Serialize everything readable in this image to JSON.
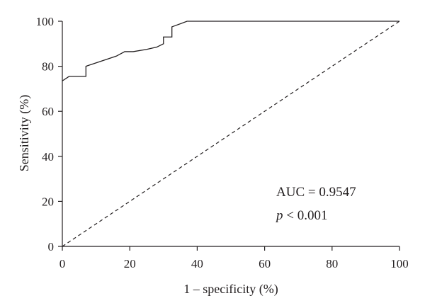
{
  "chart_data": {
    "type": "line",
    "title": "",
    "xlabel": "1 – specificity (%)",
    "ylabel": "Sensitivity (%)",
    "xlim": [
      0,
      100
    ],
    "ylim": [
      0,
      100
    ],
    "xticks": [
      0,
      20,
      40,
      60,
      80,
      100
    ],
    "yticks": [
      0,
      20,
      40,
      60,
      80,
      100
    ],
    "grid": false,
    "legend": "none",
    "series": [
      {
        "style": "solid",
        "x": [
          0,
          2,
          7,
          7,
          16,
          18.5,
          21,
          25,
          28,
          30,
          30,
          32.5,
          32.5,
          37,
          50,
          100
        ],
        "y": [
          73.5,
          75.5,
          75.5,
          80,
          84.5,
          86.5,
          86.5,
          87.5,
          88.5,
          90,
          93,
          93,
          97.5,
          100,
          100,
          100
        ]
      },
      {
        "style": "dashed",
        "x": [
          0,
          100
        ],
        "y": [
          0,
          100
        ]
      }
    ],
    "annotations": {
      "auc_text": "AUC = 0.9547",
      "p_symbol": "p",
      "p_rest": " < 0.001"
    }
  }
}
